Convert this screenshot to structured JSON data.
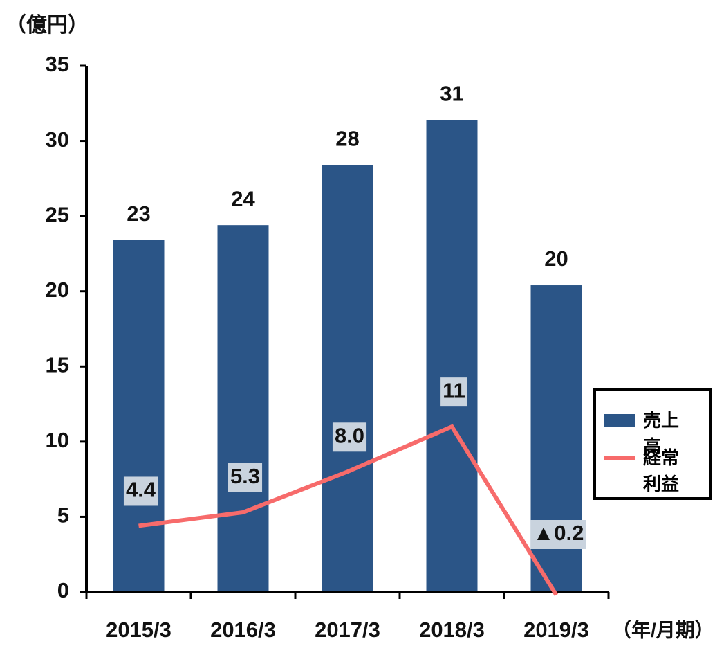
{
  "chart_data": {
    "type": "bar",
    "y_label": "（億円）",
    "x_label": "（年/月期）",
    "categories": [
      "2015/3",
      "2016/3",
      "2017/3",
      "2018/3",
      "2019/3"
    ],
    "series": [
      {
        "name": "売上高",
        "type": "bar",
        "color": "#2b5587",
        "values": [
          23.4,
          24.4,
          28.4,
          31.4,
          20.4
        ],
        "value_labels": [
          "23",
          "24",
          "28",
          "31",
          "20"
        ]
      },
      {
        "name": "経常利益",
        "type": "line",
        "color": "#f76b6b",
        "values": [
          4.4,
          5.3,
          8.0,
          11,
          -0.2
        ],
        "value_labels": [
          "4.4",
          "5.3",
          "8.0",
          "11",
          "▲0.2"
        ]
      }
    ],
    "ylim": [
      0,
      35
    ],
    "yticks": [
      0,
      5,
      10,
      15,
      20,
      25,
      30,
      35
    ],
    "grid": false,
    "legend": "right"
  }
}
